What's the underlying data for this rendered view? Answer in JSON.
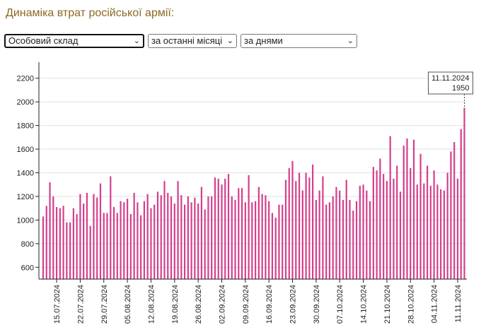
{
  "page": {
    "title": "Динаміка втрат російської армії:"
  },
  "controls": {
    "category": {
      "selected": "Особовий склад",
      "icon": "chevron-down-icon"
    },
    "period": {
      "selected": "за останні місяці",
      "icon": "chevron-down-icon"
    },
    "granularity": {
      "selected": "за днями",
      "icon": "chevron-down-icon"
    }
  },
  "chart_data": {
    "type": "bar",
    "title": "",
    "xlabel": "",
    "ylabel": "",
    "ylim": [
      500,
      2300
    ],
    "yticks": [
      600,
      800,
      1000,
      1200,
      1400,
      1600,
      1800,
      2000,
      2200
    ],
    "bar_color": "#d43f8d",
    "start_date": "2024-07-11",
    "end_date": "2024-11-11",
    "x_tick_labels": [
      "15.07.2024",
      "22.07.2024",
      "29.07.2024",
      "05.08.2024",
      "12.08.2024",
      "19.08.2024",
      "26.08.2024",
      "02.09.2024",
      "09.09.2024",
      "16.09.2024",
      "23.09.2024",
      "30.09.2024",
      "07.10.2024",
      "14.10.2024",
      "21.10.2024",
      "28.10.2024",
      "04.11.2024",
      "11.11.2024"
    ],
    "values": [
      1030,
      1120,
      1320,
      1200,
      1110,
      1100,
      1120,
      980,
      980,
      1100,
      1050,
      1220,
      1140,
      1230,
      950,
      1220,
      1190,
      1310,
      1060,
      1060,
      1370,
      1110,
      1060,
      1160,
      1150,
      1180,
      1050,
      1230,
      1150,
      1040,
      1160,
      1220,
      1100,
      1130,
      1240,
      1210,
      1330,
      1230,
      1200,
      1140,
      1330,
      1210,
      1130,
      1200,
      1150,
      1190,
      1140,
      1280,
      1090,
      1200,
      1200,
      1360,
      1350,
      1300,
      1350,
      1390,
      1200,
      1170,
      1270,
      1270,
      1150,
      1380,
      1150,
      1160,
      1280,
      1220,
      1210,
      1160,
      1060,
      1020,
      1130,
      1130,
      1340,
      1440,
      1500,
      1330,
      1400,
      1250,
      1400,
      1360,
      1470,
      1170,
      1250,
      1370,
      1130,
      1150,
      1200,
      1280,
      1250,
      1170,
      1340,
      1170,
      1080,
      1160,
      1290,
      1300,
      1250,
      1160,
      1450,
      1420,
      1520,
      1390,
      1330,
      1710,
      1350,
      1460,
      1240,
      1630,
      1690,
      1440,
      1680,
      1300,
      1560,
      1310,
      1460,
      1290,
      1420,
      1300,
      1260,
      1250,
      1400,
      1580,
      1660,
      1350,
      1770,
      1950
    ],
    "tooltip": {
      "date": "11.11.2024",
      "value": "1950"
    }
  }
}
